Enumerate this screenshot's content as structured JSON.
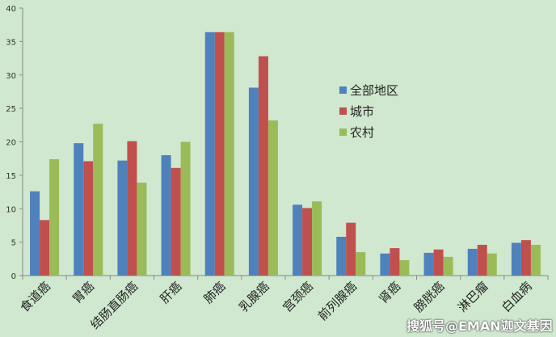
{
  "chart_data": {
    "type": "bar",
    "categories": [
      "食道癌",
      "胃癌",
      "结肠直肠癌",
      "肝癌",
      "肺癌",
      "乳腺癌",
      "宫颈癌",
      "前列腺癌",
      "肾癌",
      "膀胱癌",
      "淋巴瘤",
      "白血病"
    ],
    "series": [
      {
        "name": "全部地区",
        "color": "#4f81bd",
        "values": [
          12.6,
          19.8,
          17.2,
          18.0,
          36.4,
          28.1,
          10.6,
          5.8,
          3.3,
          3.4,
          4.0,
          4.9
        ]
      },
      {
        "name": "城市",
        "color": "#c0504d",
        "values": [
          8.3,
          17.1,
          20.1,
          16.1,
          36.4,
          32.8,
          10.1,
          7.9,
          4.1,
          3.9,
          4.6,
          5.3
        ]
      },
      {
        "name": "农村",
        "color": "#9bbb59",
        "values": [
          17.4,
          22.7,
          13.9,
          20.0,
          36.4,
          23.2,
          11.1,
          3.5,
          2.3,
          2.8,
          3.3,
          4.6
        ]
      }
    ],
    "ylim": [
      0,
      40
    ],
    "yticks": [
      0,
      5,
      10,
      15,
      20,
      25,
      30,
      35,
      40
    ],
    "grid": false,
    "legend": "center-right",
    "background": "#cfe8cf"
  },
  "watermark": "搜狐号@EMAN迦文基因"
}
